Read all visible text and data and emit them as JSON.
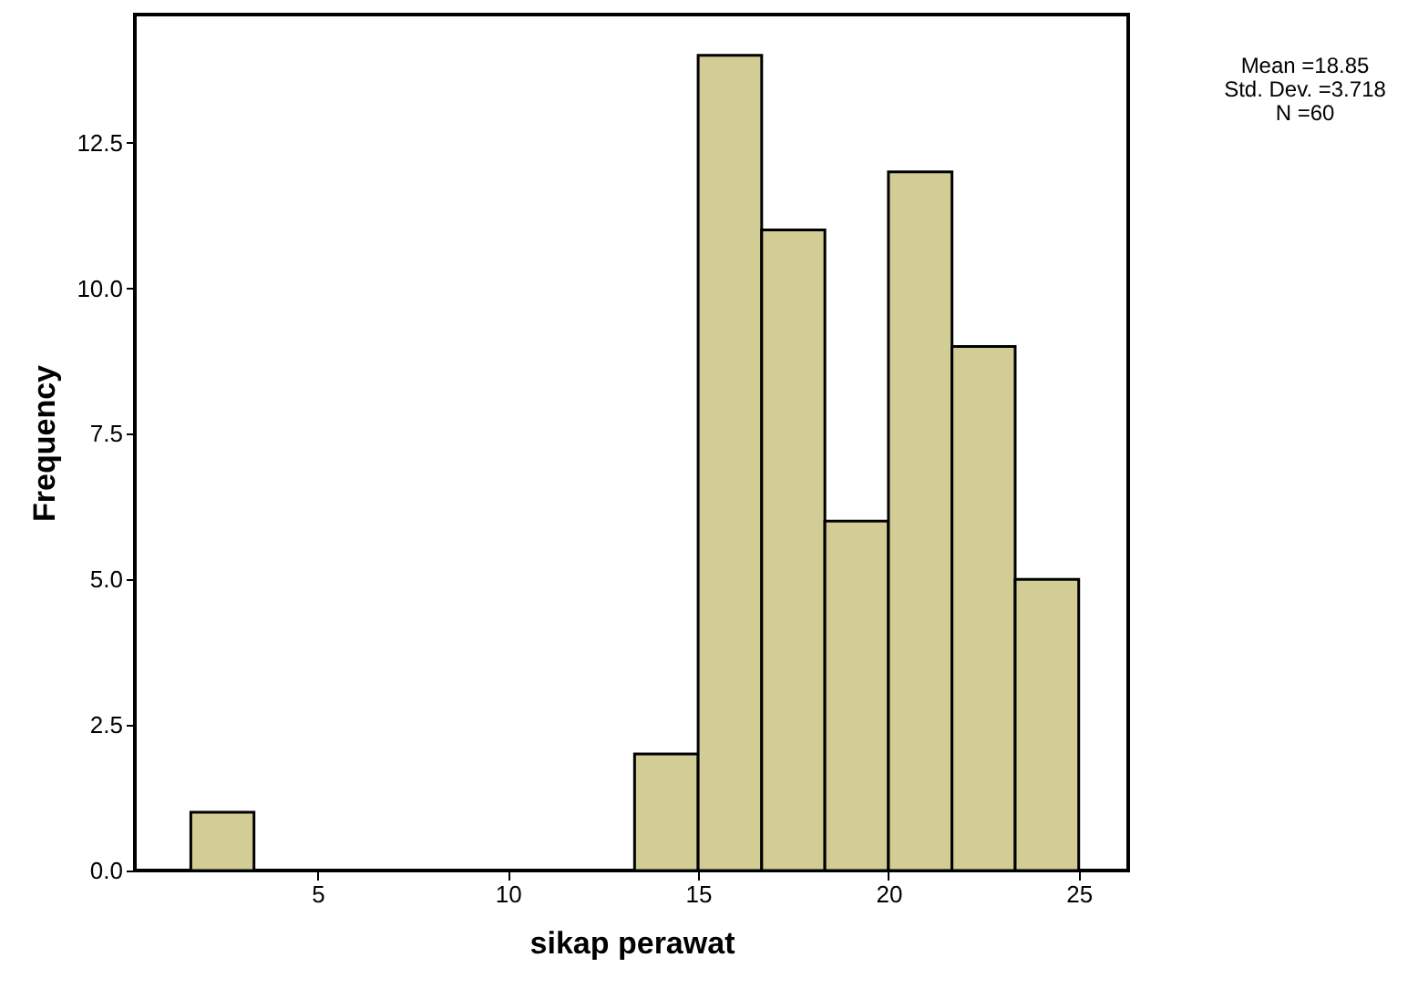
{
  "chart_data": {
    "type": "histogram",
    "xlabel": "sikap perawat",
    "ylabel": "Frequency",
    "bins": [
      1.67,
      3.33,
      5,
      6.67,
      8.33,
      10,
      11.67,
      13.33,
      15,
      16.67,
      18.33,
      20,
      21.67,
      23.33,
      25
    ],
    "values": [
      1,
      0,
      0,
      0,
      0,
      0,
      0,
      2,
      14,
      11,
      6,
      12,
      9,
      5
    ],
    "color": "#d2cd94",
    "xlim": [
      0.2,
      26.3
    ],
    "xticks": [
      5,
      10,
      15,
      20,
      25
    ],
    "ylim": [
      0,
      14.7
    ],
    "yticks": [
      {
        "value": 0,
        "label": "0.0"
      },
      {
        "value": 2.5,
        "label": "2.5"
      },
      {
        "value": 5,
        "label": "5.0"
      },
      {
        "value": 7.5,
        "label": "7.5"
      },
      {
        "value": 10,
        "label": "10.0"
      },
      {
        "value": 12.5,
        "label": "12.5"
      }
    ],
    "grid": false,
    "annotations": [
      "Mean =18.85",
      "Std. Dev. =3.718",
      "N =60"
    ]
  }
}
